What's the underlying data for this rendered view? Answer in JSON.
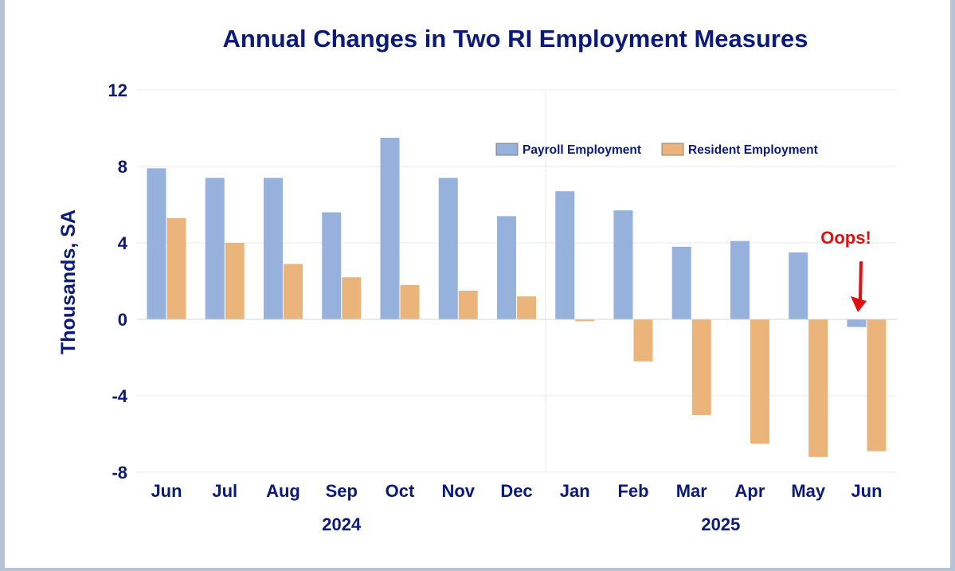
{
  "chart_data": {
    "type": "bar",
    "title": "Annual Changes in Two RI Employment Measures",
    "ylabel": "Thousands, SA",
    "xlabel": "",
    "ylim": [
      -8,
      12
    ],
    "yticks": [
      12,
      8,
      4,
      0,
      -4,
      -8
    ],
    "grid": true,
    "legend_position": "top-right",
    "categories": [
      "Jun",
      "Jul",
      "Aug",
      "Sep",
      "Oct",
      "Nov",
      "Dec",
      "Jan",
      "Feb",
      "Mar",
      "Apr",
      "May",
      "Jun"
    ],
    "year_groups": [
      {
        "label": "2024",
        "start": 0,
        "end": 6
      },
      {
        "label": "2025",
        "start": 7,
        "end": 12
      }
    ],
    "series": [
      {
        "name": "Payroll Employment",
        "color": "#95b1dc",
        "values": [
          7.9,
          7.4,
          7.4,
          5.6,
          9.5,
          7.4,
          5.4,
          6.7,
          5.7,
          3.8,
          4.1,
          3.5,
          -0.4
        ]
      },
      {
        "name": "Resident Employment",
        "color": "#ebb47a",
        "values": [
          5.3,
          4.0,
          2.9,
          2.2,
          1.8,
          1.5,
          1.2,
          -0.1,
          -2.2,
          -5.0,
          -6.5,
          -7.2,
          -6.9
        ]
      }
    ],
    "annotations": [
      {
        "text": "Oops!",
        "color": "#e01010",
        "points_to_category": 12,
        "points_to_series": "Payroll Employment"
      }
    ]
  }
}
